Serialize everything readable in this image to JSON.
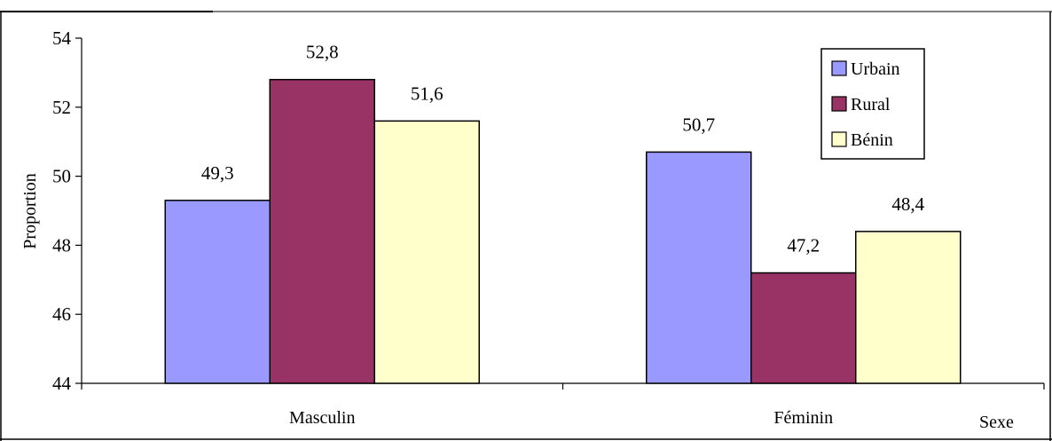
{
  "chart_data": {
    "type": "bar",
    "categories": [
      "Masculin",
      "Féminin"
    ],
    "series": [
      {
        "name": "Urbain",
        "values": [
          49.3,
          50.7
        ],
        "color": "#9999ff"
      },
      {
        "name": "Rural",
        "values": [
          52.8,
          47.2
        ],
        "color": "#993366"
      },
      {
        "name": "Bénin",
        "values": [
          51.6,
          48.4
        ],
        "color": "#ffffcc"
      }
    ],
    "data_labels": [
      [
        "49,3",
        "50,7"
      ],
      [
        "52,8",
        "47,2"
      ],
      [
        "51,6",
        "48,4"
      ]
    ],
    "ylabel": "Proportion",
    "xlabel": "Sexe",
    "ylim": [
      44,
      54
    ],
    "yticks": [
      44,
      46,
      48,
      50,
      52,
      54
    ],
    "grid": false,
    "legend_position": "top-right"
  }
}
